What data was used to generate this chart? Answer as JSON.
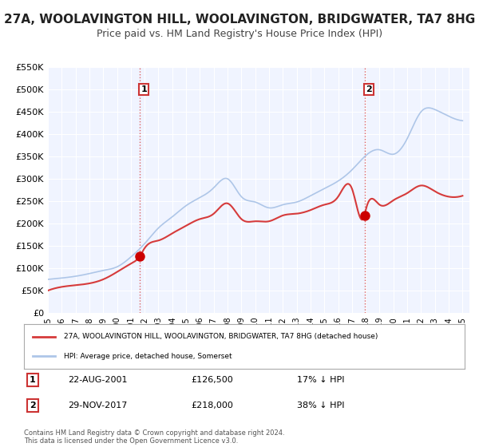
{
  "title": "27A, WOOLAVINGTON HILL, WOOLAVINGTON, BRIDGWATER, TA7 8HG",
  "subtitle": "Price paid vs. HM Land Registry's House Price Index (HPI)",
  "title_fontsize": 11,
  "subtitle_fontsize": 9,
  "background_color": "#ffffff",
  "plot_bg_color": "#f0f4ff",
  "grid_color": "#ffffff",
  "ylim": [
    0,
    550000
  ],
  "yticks": [
    0,
    50000,
    100000,
    150000,
    200000,
    250000,
    300000,
    350000,
    400000,
    450000,
    500000,
    550000
  ],
  "ytick_labels": [
    "£0",
    "£50K",
    "£100K",
    "£150K",
    "£200K",
    "£250K",
    "£300K",
    "£350K",
    "£400K",
    "£450K",
    "£500K",
    "£550K"
  ],
  "xlim_start": 1995.0,
  "xlim_end": 2025.5,
  "xticks": [
    1995,
    1996,
    1997,
    1998,
    1999,
    2000,
    2001,
    2002,
    2003,
    2004,
    2005,
    2006,
    2007,
    2008,
    2009,
    2010,
    2011,
    2012,
    2013,
    2014,
    2015,
    2016,
    2017,
    2018,
    2019,
    2020,
    2021,
    2022,
    2023,
    2024,
    2025
  ],
  "marker1_x": 2001.64,
  "marker1_y": 126500,
  "marker1_label": "1",
  "marker2_x": 2017.91,
  "marker2_y": 218000,
  "marker2_label": "2",
  "vline1_x": 2001.64,
  "vline2_x": 2017.91,
  "legend_line1": "27A, WOOLAVINGTON HILL, WOOLAVINGTON, BRIDGWATER, TA7 8HG (detached house)",
  "legend_line2": "HPI: Average price, detached house, Somerset",
  "annotation1_box": "1",
  "annotation1_date": "22-AUG-2001",
  "annotation1_price": "£126,500",
  "annotation1_hpi": "17% ↓ HPI",
  "annotation2_box": "2",
  "annotation2_date": "29-NOV-2017",
  "annotation2_price": "£218,000",
  "annotation2_hpi": "38% ↓ HPI",
  "footer": "Contains HM Land Registry data © Crown copyright and database right 2024.\nThis data is licensed under the Open Government Licence v3.0.",
  "hpi_color": "#aec6e8",
  "price_color": "#d63b3b",
  "marker_color": "#cc0000"
}
